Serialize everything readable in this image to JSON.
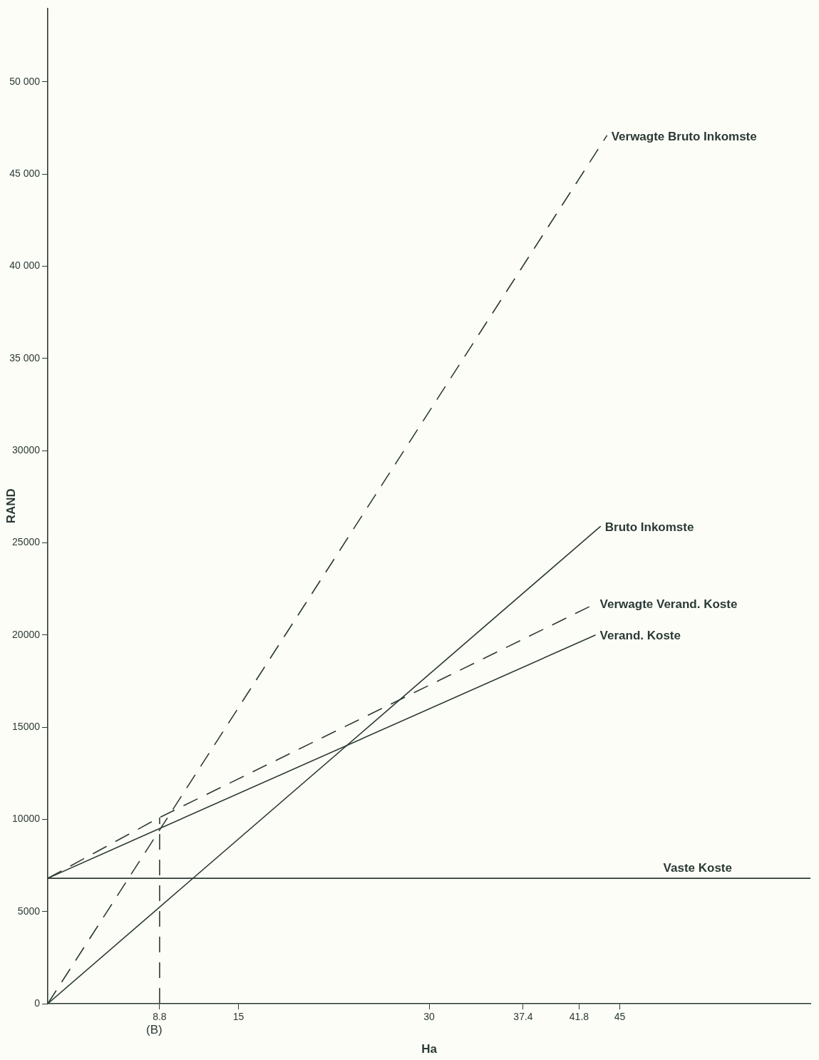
{
  "chart_data": {
    "type": "line",
    "xlabel": "Ha",
    "ylabel": "RAND",
    "annotations": [
      "(B)"
    ],
    "xlim": [
      0,
      60
    ],
    "ylim": [
      0,
      54000
    ],
    "xticks": [
      8.8,
      15,
      30,
      37.4,
      41.8,
      45
    ],
    "yticks": [
      0,
      5000,
      10000,
      15000,
      20000,
      25000,
      30000,
      {
        "value": 35000,
        "label": "35 000"
      },
      {
        "value": 40000,
        "label": "40 000"
      },
      {
        "value": 45000,
        "label": "45 000"
      },
      {
        "value": 50000,
        "label": "50 000"
      }
    ],
    "grid": false,
    "legend": false,
    "marker": "none",
    "series": [
      {
        "name": "Verwagte Bruto Inkomste",
        "color": "#2b3a34",
        "line_style": "dashed",
        "x": [
          0,
          44
        ],
        "values": [
          0,
          47100
        ]
      },
      {
        "name": "Bruto Inkomste",
        "color": "#2b3a34",
        "line_style": "solid",
        "x": [
          0,
          43.5
        ],
        "values": [
          0,
          25900
        ]
      },
      {
        "name": "Verwagte Verand. Koste",
        "color": "#2b3a34",
        "line_style": "dashed",
        "x": [
          0,
          8.8,
          43.1
        ],
        "values": [
          6800,
          10100,
          21700
        ]
      },
      {
        "name": "Verand. Koste",
        "color": "#2b3a34",
        "line_style": "solid",
        "x": [
          0,
          8.8,
          43.1
        ],
        "values": [
          6800,
          9500,
          20000
        ]
      },
      {
        "name": "Vaste Koste",
        "color": "#2b3a34",
        "line_style": "solid",
        "x": [
          0,
          60
        ],
        "values": [
          6800,
          6800
        ]
      },
      {
        "color": "#2b3a34",
        "line_style": "dashed",
        "x": [
          8.8,
          8.8
        ],
        "values": [
          0,
          10100
        ]
      }
    ]
  }
}
